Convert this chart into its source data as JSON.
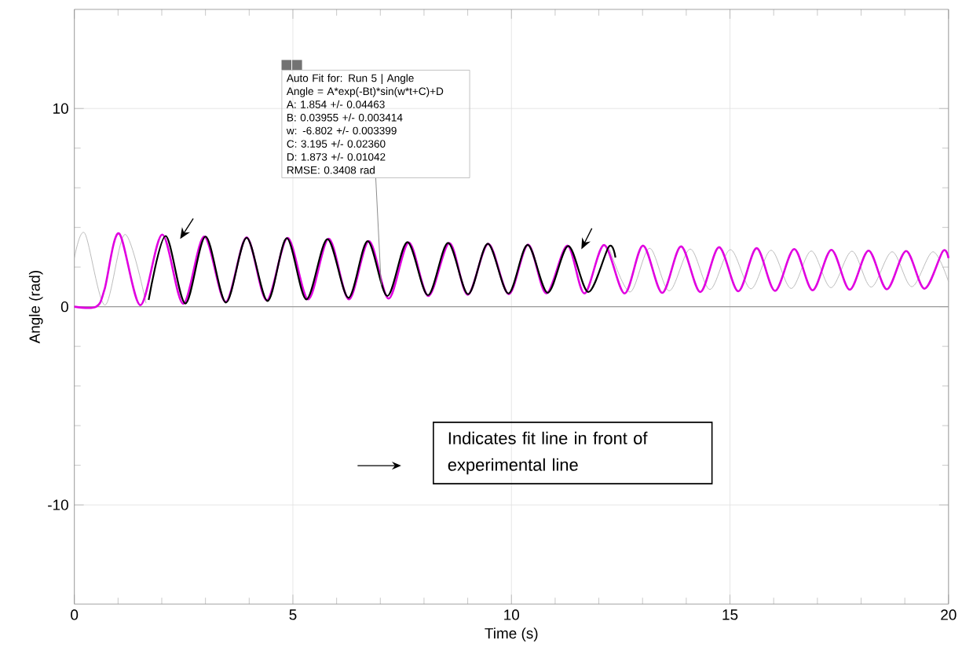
{
  "chart_data": {
    "type": "line",
    "xlabel": "Time (s)",
    "ylabel": "Angle (rad)",
    "xlim": [
      0,
      20
    ],
    "ylim": [
      -15,
      15
    ],
    "xticks": [
      0,
      5,
      10,
      15,
      20
    ],
    "yticks": [
      -10,
      0,
      10
    ],
    "grid": true,
    "line_style": "solid",
    "ref_lines": [
      {
        "axis": "y",
        "value": 0,
        "color": "#9a9a9a"
      }
    ],
    "series": [
      {
        "color": "#b4b4b4",
        "x": [
          0,
          0.24,
          0.7,
          1.16,
          1.64,
          7.0,
          12.23,
          12.71,
          13.16,
          13.61,
          14.09,
          14.54,
          15.01,
          15.48,
          15.94,
          16.4,
          16.86,
          17.31,
          17.79,
          18.23,
          18.71,
          19.16,
          19.64,
          20.0
        ],
        "values": [
          2.45,
          3.7,
          0.08,
          3.65,
          0.18,
          null,
          3.0,
          0.74,
          2.95,
          0.8,
          2.91,
          0.87,
          2.88,
          0.9,
          2.85,
          0.92,
          2.81,
          0.96,
          2.8,
          0.99,
          2.77,
          1.01,
          2.77,
          1.26
        ]
      },
      {
        "color": "#e000e0",
        "x": [
          0,
          0.5,
          0.69,
          1.02,
          1.51,
          2.01,
          2.49,
          2.97,
          3.46,
          3.94,
          4.4,
          4.88,
          5.35,
          5.82,
          6.28,
          6.74,
          7.19,
          7.65,
          8.1,
          8.58,
          9.0,
          9.47,
          9.94,
          10.38,
          10.8,
          11.28,
          11.67,
          12.12,
          12.59,
          13.01,
          13.45,
          13.88,
          14.32,
          14.75,
          15.19,
          15.61,
          16.03,
          16.47,
          16.89,
          17.32,
          17.74,
          18.17,
          18.59,
          19.03,
          19.45,
          19.87,
          20.0
        ],
        "values": [
          0,
          0,
          0.87,
          3.7,
          0.08,
          3.64,
          0.15,
          3.54,
          0.24,
          3.5,
          0.32,
          3.47,
          0.37,
          3.43,
          0.37,
          3.31,
          0.41,
          3.24,
          0.54,
          3.21,
          0.6,
          3.17,
          0.63,
          3.13,
          0.67,
          3.08,
          0.67,
          3.11,
          0.67,
          3.08,
          0.7,
          3.04,
          0.74,
          3.0,
          0.78,
          2.95,
          0.8,
          2.91,
          0.83,
          2.87,
          0.86,
          2.83,
          0.88,
          2.81,
          0.91,
          2.8,
          2.45
        ]
      },
      {
        "color": "#000000",
        "x": [
          1.7,
          2.09,
          2.54,
          3.0,
          3.47,
          3.94,
          4.42,
          4.86,
          5.31,
          5.79,
          6.27,
          6.71,
          7.16,
          7.62,
          8.09,
          8.55,
          9.01,
          9.46,
          9.93,
          10.37,
          10.83,
          11.3,
          11.76,
          12.23,
          12.38
        ],
        "values": [
          0.34,
          3.57,
          0.16,
          3.54,
          0.21,
          3.48,
          0.29,
          3.46,
          0.37,
          3.41,
          0.45,
          3.31,
          0.54,
          3.26,
          0.58,
          3.22,
          0.63,
          3.18,
          0.67,
          3.12,
          0.7,
          3.06,
          0.74,
          3.03,
          2.48
        ]
      }
    ],
    "annotations": [
      "Auto Fit for: Run 5 | Angle",
      "Angle = A*exp(-Bt)*sin(w*t+C)+D",
      "A: 1.854 +/- 0.04463",
      "B: 0.03955 +/- 0.003414",
      "w: -6.802 +/- 0.003399",
      "C: 3.195 +/- 0.02360",
      "D: 1.873 +/- 0.01042",
      {
        "text": "RMSE: 0.3408 rad",
        "x": 7.02,
        "y": 1.07
      },
      "Indicates fit line in front of experimental line"
    ]
  }
}
